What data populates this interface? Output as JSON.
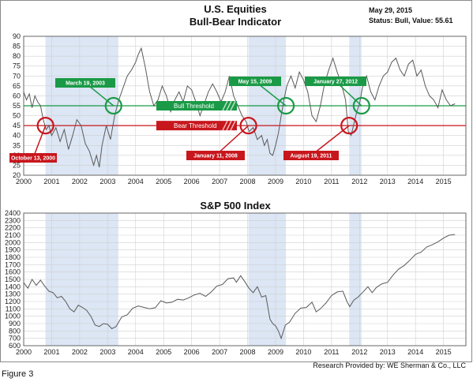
{
  "status": {
    "date": "May 29, 2015",
    "status_line": "Status: Bull, Value: 55.61"
  },
  "footer": {
    "figure_label": "Figure 3",
    "credit": "Research Provided by: WE Sherman & Co., LLC"
  },
  "colors": {
    "bull": "#1a9a46",
    "bear": "#c8161d",
    "shade": "#dce6f4",
    "line": "#5a5a5a"
  },
  "chart_data": [
    {
      "type": "line",
      "title": "U.S. Equities",
      "subtitle": "Bull-Bear Indicator",
      "ylim": [
        20,
        90
      ],
      "yticks": [
        20,
        25,
        30,
        35,
        40,
        45,
        50,
        55,
        60,
        65,
        70,
        75,
        80,
        85,
        90
      ],
      "xlim": [
        2000,
        2015.8
      ],
      "xticks": [
        2000,
        2001,
        2002,
        2003,
        2004,
        2005,
        2006,
        2007,
        2008,
        2009,
        2010,
        2011,
        2012,
        2013,
        2014,
        2015
      ],
      "grid": true,
      "thresholds": [
        {
          "label": "Bull Threshold",
          "value": 55,
          "color": "#1a9a46"
        },
        {
          "label": "Bear Threshold",
          "value": 45,
          "color": "#c8161d"
        }
      ],
      "shaded_periods": [
        [
          2000.78,
          2003.38
        ],
        [
          2008.03,
          2009.37
        ],
        [
          2011.63,
          2012.07
        ]
      ],
      "annotations": [
        {
          "label": "October 13, 2000",
          "x": 2000.78,
          "y": 45,
          "kind": "bear"
        },
        {
          "label": "March 19, 2003",
          "x": 2003.21,
          "y": 55,
          "kind": "bull"
        },
        {
          "label": "January 11, 2008",
          "x": 2008.03,
          "y": 45,
          "kind": "bear"
        },
        {
          "label": "May 15, 2009",
          "x": 2009.37,
          "y": 55,
          "kind": "bull"
        },
        {
          "label": "August 19, 2011",
          "x": 2011.63,
          "y": 45,
          "kind": "bear"
        },
        {
          "label": "January 27, 2012",
          "x": 2012.07,
          "y": 55,
          "kind": "bull"
        }
      ],
      "series": [
        {
          "x": [
            2000.0,
            2000.1,
            2000.2,
            2000.3,
            2000.4,
            2000.5,
            2000.6,
            2000.7,
            2000.8,
            2000.9,
            2001.0,
            2001.15,
            2001.3,
            2001.45,
            2001.6,
            2001.75,
            2001.9,
            2002.05,
            2002.2,
            2002.35,
            2002.5,
            2002.6,
            2002.7,
            2002.8,
            2002.95,
            2003.1,
            2003.25,
            2003.4,
            2003.55,
            2003.7,
            2003.85,
            2004.0,
            2004.1,
            2004.2,
            2004.35,
            2004.5,
            2004.65,
            2004.8,
            2004.95,
            2005.1,
            2005.25,
            2005.4,
            2005.55,
            2005.7,
            2005.85,
            2006.0,
            2006.15,
            2006.3,
            2006.45,
            2006.6,
            2006.75,
            2006.9,
            2007.05,
            2007.2,
            2007.35,
            2007.5,
            2007.65,
            2007.8,
            2007.95,
            2008.05,
            2008.2,
            2008.35,
            2008.5,
            2008.6,
            2008.7,
            2008.8,
            2008.9,
            2009.0,
            2009.1,
            2009.2,
            2009.3,
            2009.4,
            2009.55,
            2009.7,
            2009.85,
            2010.0,
            2010.15,
            2010.3,
            2010.45,
            2010.6,
            2010.75,
            2010.9,
            2011.05,
            2011.2,
            2011.35,
            2011.5,
            2011.6,
            2011.7,
            2011.8,
            2011.9,
            2012.0,
            2012.1,
            2012.25,
            2012.4,
            2012.55,
            2012.7,
            2012.85,
            2013.0,
            2013.15,
            2013.3,
            2013.45,
            2013.6,
            2013.75,
            2013.9,
            2014.05,
            2014.2,
            2014.35,
            2014.5,
            2014.65,
            2014.8,
            2014.95,
            2015.1,
            2015.25,
            2015.41
          ],
          "values": [
            62,
            58,
            61,
            54,
            60,
            57,
            55,
            48,
            43,
            45,
            40,
            44,
            37,
            43,
            33,
            40,
            48,
            45,
            36,
            32,
            25,
            30,
            24,
            35,
            45,
            38,
            50,
            58,
            64,
            70,
            73,
            77,
            81,
            84,
            74,
            62,
            55,
            58,
            65,
            60,
            52,
            58,
            62,
            57,
            65,
            63,
            57,
            50,
            56,
            62,
            66,
            62,
            57,
            62,
            70,
            60,
            55,
            50,
            47,
            42,
            44,
            38,
            40,
            35,
            38,
            31,
            30,
            35,
            41,
            50,
            58,
            65,
            70,
            64,
            72,
            68,
            62,
            50,
            47,
            55,
            66,
            73,
            79,
            72,
            66,
            58,
            42,
            40,
            46,
            52,
            56,
            64,
            70,
            62,
            58,
            65,
            70,
            72,
            77,
            79,
            73,
            70,
            76,
            78,
            70,
            73,
            65,
            60,
            58,
            54,
            63,
            58,
            55,
            56
          ]
        }
      ]
    },
    {
      "type": "line",
      "title": "S&P 500 Index",
      "ylim": [
        600,
        2400
      ],
      "yticks": [
        600,
        700,
        800,
        900,
        1000,
        1100,
        1200,
        1300,
        1400,
        1500,
        1600,
        1700,
        1800,
        1900,
        2000,
        2100,
        2200,
        2300,
        2400
      ],
      "xlim": [
        2000,
        2015.8
      ],
      "xticks": [
        2000,
        2001,
        2002,
        2003,
        2004,
        2005,
        2006,
        2007,
        2008,
        2009,
        2010,
        2011,
        2012,
        2013,
        2014,
        2015
      ],
      "grid": true,
      "shaded_periods": [
        [
          2000.78,
          2003.38
        ],
        [
          2008.03,
          2009.37
        ],
        [
          2011.63,
          2012.07
        ]
      ],
      "series": [
        {
          "x": [
            2000.0,
            2000.15,
            2000.3,
            2000.45,
            2000.6,
            2000.75,
            2000.9,
            2001.05,
            2001.2,
            2001.35,
            2001.5,
            2001.65,
            2001.8,
            2001.95,
            2002.1,
            2002.25,
            2002.4,
            2002.55,
            2002.7,
            2002.85,
            2003.0,
            2003.15,
            2003.3,
            2003.5,
            2003.7,
            2003.9,
            2004.1,
            2004.3,
            2004.5,
            2004.7,
            2004.9,
            2005.1,
            2005.3,
            2005.5,
            2005.7,
            2005.9,
            2006.1,
            2006.3,
            2006.5,
            2006.7,
            2006.9,
            2007.1,
            2007.3,
            2007.5,
            2007.6,
            2007.75,
            2007.9,
            2008.05,
            2008.2,
            2008.35,
            2008.5,
            2008.65,
            2008.8,
            2008.9,
            2009.0,
            2009.1,
            2009.2,
            2009.35,
            2009.5,
            2009.7,
            2009.9,
            2010.1,
            2010.3,
            2010.45,
            2010.6,
            2010.8,
            2011.0,
            2011.2,
            2011.4,
            2011.55,
            2011.65,
            2011.8,
            2011.95,
            2012.1,
            2012.3,
            2012.45,
            2012.6,
            2012.8,
            2013.0,
            2013.2,
            2013.4,
            2013.6,
            2013.8,
            2014.0,
            2014.2,
            2014.4,
            2014.6,
            2014.8,
            2015.0,
            2015.2,
            2015.41
          ],
          "values": [
            1455,
            1380,
            1500,
            1420,
            1490,
            1410,
            1340,
            1320,
            1250,
            1270,
            1200,
            1100,
            1060,
            1150,
            1120,
            1080,
            1000,
            880,
            860,
            900,
            890,
            830,
            860,
            990,
            1020,
            1110,
            1140,
            1120,
            1100,
            1115,
            1210,
            1180,
            1190,
            1230,
            1220,
            1250,
            1290,
            1310,
            1270,
            1330,
            1410,
            1430,
            1510,
            1520,
            1460,
            1550,
            1470,
            1380,
            1320,
            1400,
            1260,
            1280,
            960,
            900,
            870,
            800,
            700,
            880,
            920,
            1040,
            1110,
            1120,
            1190,
            1060,
            1100,
            1180,
            1280,
            1330,
            1340,
            1200,
            1130,
            1220,
            1260,
            1320,
            1400,
            1320,
            1390,
            1440,
            1460,
            1560,
            1640,
            1690,
            1760,
            1840,
            1870,
            1940,
            1970,
            2010,
            2060,
            2100,
            2110
          ]
        }
      ]
    }
  ]
}
